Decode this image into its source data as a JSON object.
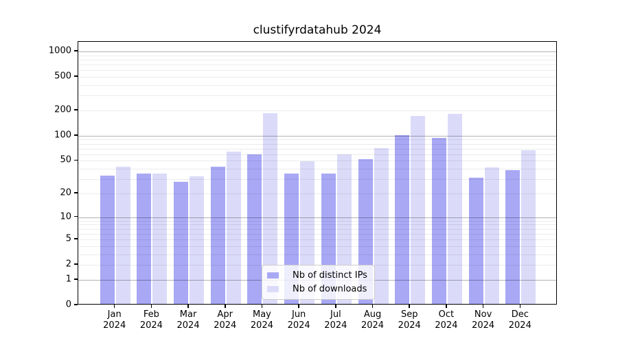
{
  "figure": {
    "title": "clustifyrdatahub 2024"
  },
  "chart_data": {
    "type": "bar",
    "title": "clustifyrdatahub 2024",
    "categories": [
      "Jan",
      "Feb",
      "Mar",
      "Apr",
      "May",
      "Jun",
      "Jul",
      "Aug",
      "Sep",
      "Oct",
      "Nov",
      "Dec"
    ],
    "xtick_year": "2024",
    "series": [
      {
        "name": "Nb of distinct IPs",
        "color": "#a8a8f5",
        "values": [
          32,
          34,
          27,
          41,
          58,
          34,
          34,
          50,
          97,
          90,
          30,
          37
        ]
      },
      {
        "name": "Nb of downloads",
        "color": "#dbdbf9",
        "values": [
          41,
          34,
          31,
          62,
          180,
          48,
          58,
          68,
          166,
          174,
          40,
          65
        ]
      }
    ],
    "xlabel": "",
    "ylabel": "",
    "yscale": "log1p",
    "ylim": [
      0,
      1300
    ],
    "yticks": [
      1000,
      500,
      200,
      100,
      50,
      20,
      10,
      5,
      2,
      1,
      0
    ],
    "grid": "major+minor horizontal",
    "legend_position": "lower center inside axes"
  }
}
